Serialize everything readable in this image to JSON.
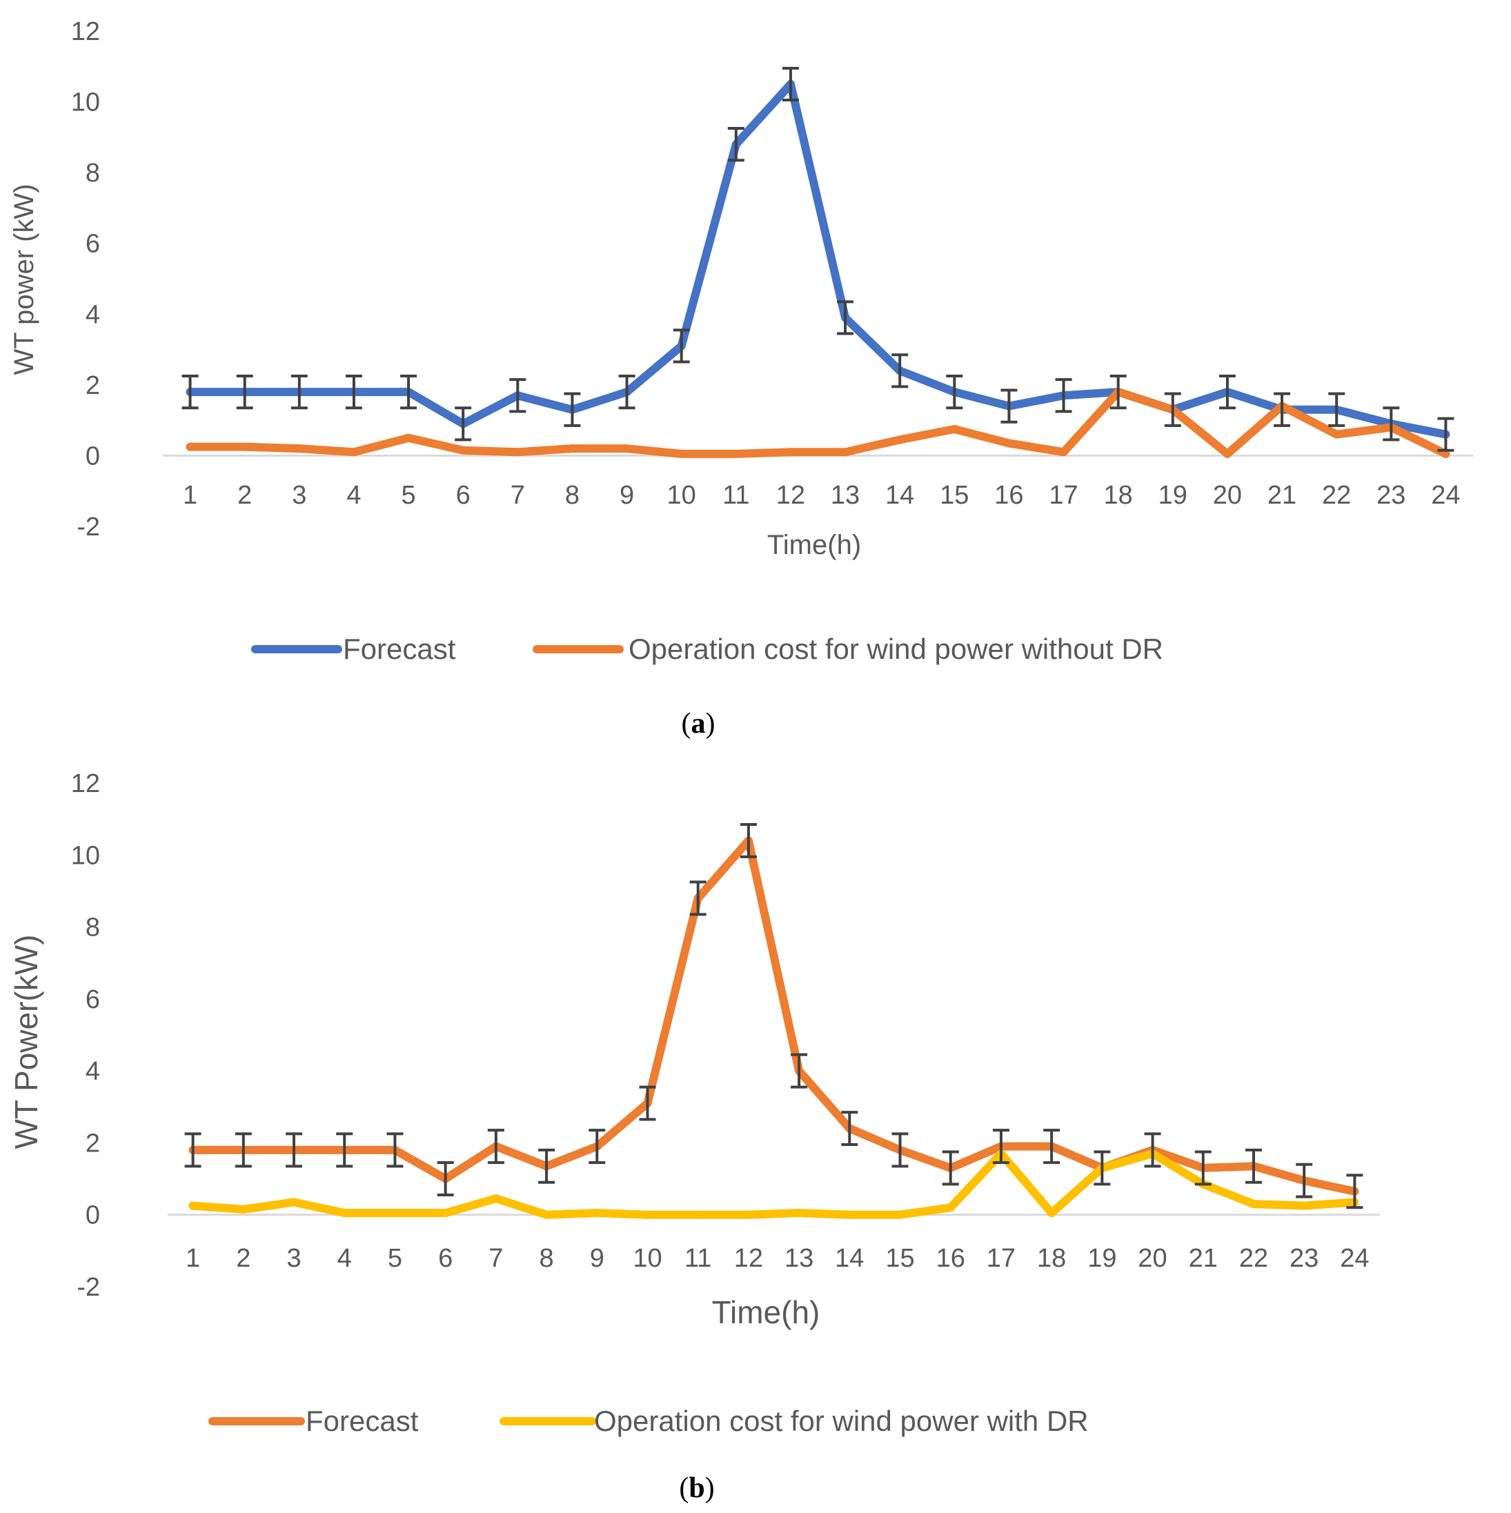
{
  "chart_data": [
    {
      "type": "line",
      "panel_label": "a",
      "xlabel": "Time(h)",
      "ylabel": "WT power (kW)",
      "ylim": [
        -2,
        12
      ],
      "yticks": [
        "12",
        "10",
        "8",
        "6",
        "4",
        "2",
        "0",
        "-2"
      ],
      "categories": [
        "1",
        "2",
        "3",
        "4",
        "5",
        "6",
        "7",
        "8",
        "9",
        "10",
        "11",
        "12",
        "13",
        "14",
        "15",
        "16",
        "17",
        "18",
        "19",
        "20",
        "21",
        "22",
        "23",
        "24"
      ],
      "grid": false,
      "legend_position": "bottom",
      "series": [
        {
          "name": "Forecast",
          "color": "#4472C4",
          "error_bars": true,
          "error": 0.45,
          "values": [
            1.8,
            1.8,
            1.8,
            1.8,
            1.8,
            0.9,
            1.7,
            1.3,
            1.8,
            3.1,
            8.8,
            10.5,
            3.9,
            2.4,
            1.8,
            1.4,
            1.7,
            1.8,
            1.3,
            1.8,
            1.3,
            1.3,
            0.9,
            0.6
          ]
        },
        {
          "name": "Operation cost for wind power without DR",
          "color": "#ED7D31",
          "error_bars": false,
          "values": [
            0.25,
            0.25,
            0.2,
            0.1,
            0.5,
            0.15,
            0.1,
            0.2,
            0.2,
            0.05,
            0.05,
            0.1,
            0.1,
            0.45,
            0.75,
            0.35,
            0.1,
            1.8,
            1.3,
            0.05,
            1.4,
            0.6,
            0.8,
            0.05
          ]
        }
      ]
    },
    {
      "type": "line",
      "panel_label": "b",
      "xlabel": "Time(h)",
      "ylabel": "WT Power(kW)",
      "ylim": [
        -2,
        12
      ],
      "yticks": [
        "12",
        "10",
        "8",
        "6",
        "4",
        "2",
        "0",
        "-2"
      ],
      "categories": [
        "1",
        "2",
        "3",
        "4",
        "5",
        "6",
        "7",
        "8",
        "9",
        "10",
        "11",
        "12",
        "13",
        "14",
        "15",
        "16",
        "17",
        "18",
        "19",
        "20",
        "21",
        "22",
        "23",
        "24"
      ],
      "grid": false,
      "legend_position": "bottom",
      "series": [
        {
          "name": "Forecast",
          "color": "#ED7D31",
          "error_bars": true,
          "error": 0.45,
          "values": [
            1.8,
            1.8,
            1.8,
            1.8,
            1.8,
            1.0,
            1.9,
            1.35,
            1.9,
            3.1,
            8.8,
            10.4,
            4.0,
            2.4,
            1.8,
            1.3,
            1.9,
            1.9,
            1.3,
            1.8,
            1.3,
            1.35,
            0.95,
            0.65
          ]
        },
        {
          "name": "Operation cost for wind power with DR",
          "color": "#FFC000",
          "error_bars": false,
          "values": [
            0.25,
            0.15,
            0.35,
            0.05,
            0.05,
            0.05,
            0.45,
            0.0,
            0.05,
            0.0,
            0.0,
            0.0,
            0.05,
            0.0,
            0.0,
            0.2,
            1.7,
            0.05,
            1.3,
            1.7,
            0.85,
            0.3,
            0.25,
            0.35
          ]
        }
      ]
    }
  ]
}
